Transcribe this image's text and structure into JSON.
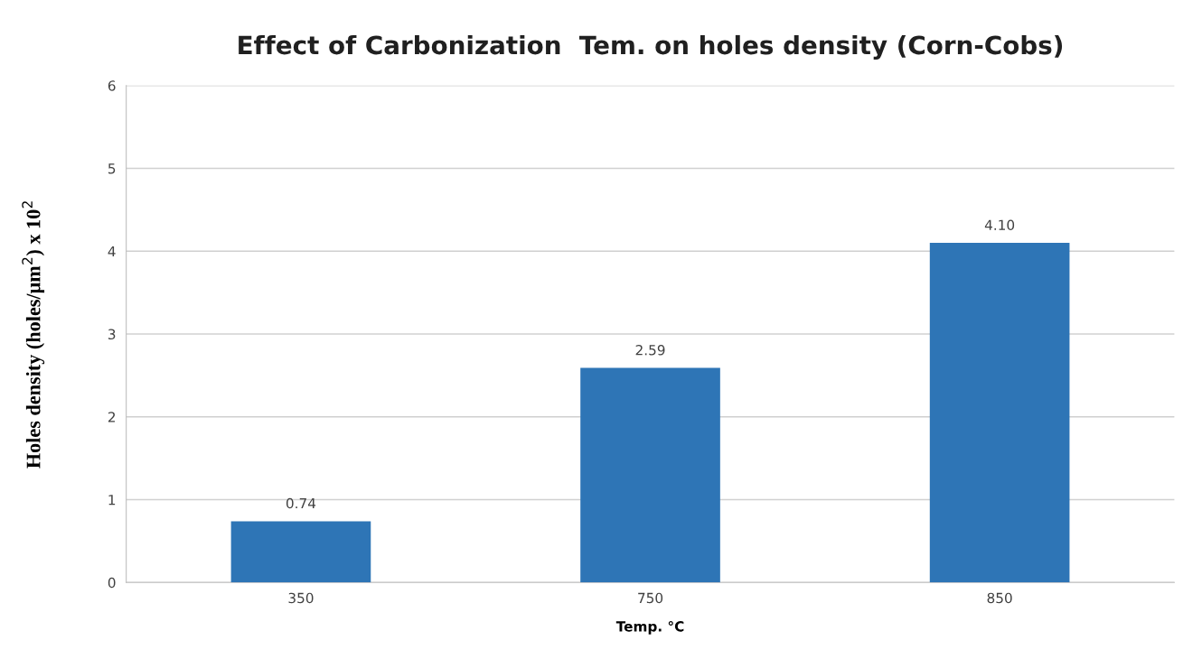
{
  "chart_data": {
    "type": "bar",
    "title": "Effect of Carbonization  Tem. on holes density (Corn-Cobs)",
    "xlabel": "Temp. °C",
    "ylabel": "Holes density (holes/μm$^{2}$) x 10$^{2}$",
    "categories": [
      "350",
      "750",
      "850"
    ],
    "values": [
      0.74,
      2.59,
      4.1
    ],
    "value_labels": [
      "0.74",
      "2.59",
      "4.10"
    ],
    "color": "#2e75b6",
    "ylim": [
      0,
      6
    ],
    "yticks": [
      0,
      1,
      2,
      3,
      4,
      5,
      6
    ],
    "grid": "y",
    "legend": false
  }
}
